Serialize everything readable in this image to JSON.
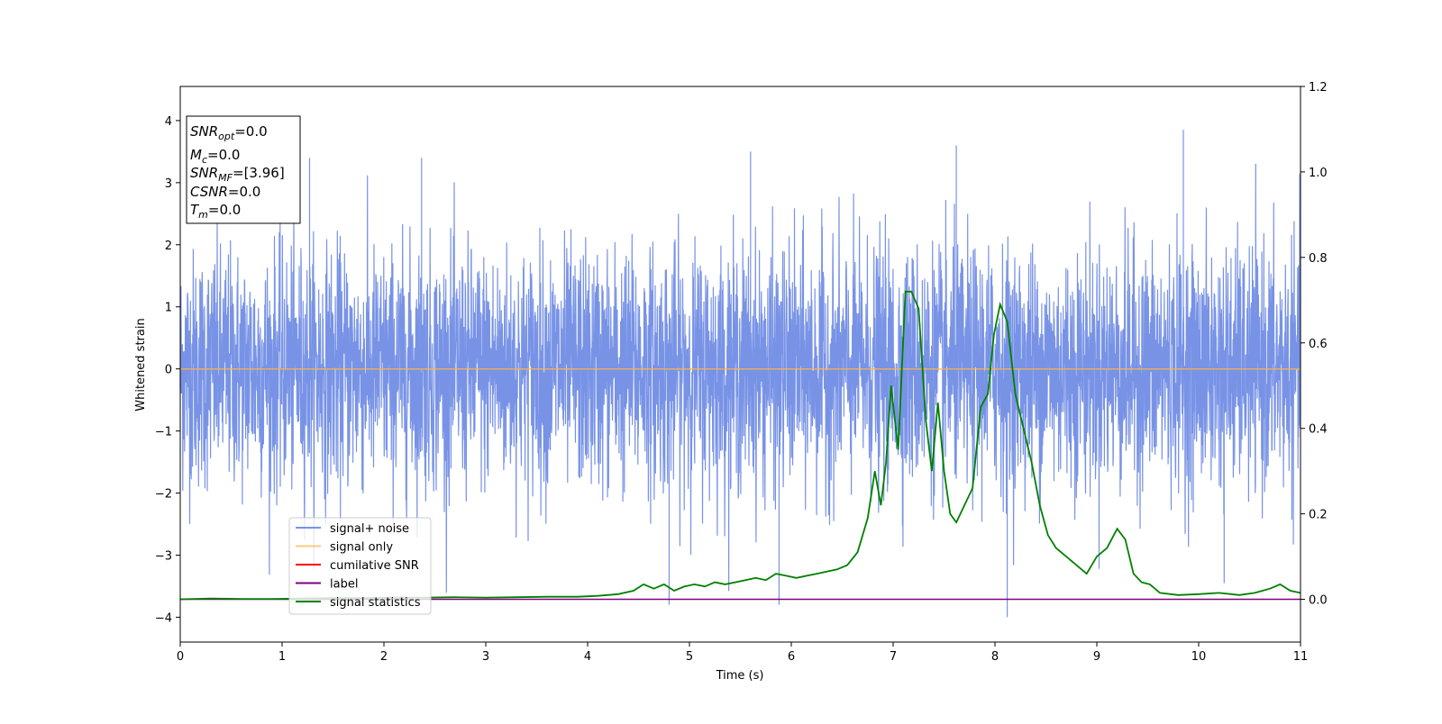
{
  "chart_data": {
    "type": "line",
    "xlabel": "Time (s)",
    "ylabel": "Whitened strain",
    "xlim": [
      0,
      11
    ],
    "ylim_left": [
      -4.4,
      4.55
    ],
    "ylim_right": [
      -0.1,
      1.2
    ],
    "x_ticks": [
      0,
      1,
      2,
      3,
      4,
      5,
      6,
      7,
      8,
      9,
      10,
      11
    ],
    "y_left_ticks": [
      -4,
      -3,
      -2,
      -1,
      0,
      1,
      2,
      3,
      4
    ],
    "y_right_ticks": [
      0.0,
      0.2,
      0.4,
      0.6,
      0.8,
      1.0,
      1.2
    ],
    "y_right_tick_labels": [
      "0.0",
      "0.2",
      "0.4",
      "0.6",
      "0.8",
      "1.0",
      "1.2"
    ],
    "legend_position": "lower-left",
    "grid": false,
    "stats_box": {
      "snr_opt": {
        "base": "SNR",
        "sub": "opt",
        "value": "=0.0"
      },
      "mc": {
        "base": "M",
        "sub": "c",
        "value": "=0.0"
      },
      "snr_mf": {
        "base": "SNR",
        "sub": "MF",
        "value": "=[3.96]"
      },
      "csnr": {
        "base": "CSNR",
        "sub": "",
        "value": "=0.0"
      },
      "tm": {
        "base": "T",
        "sub": "m",
        "value": "=0.0"
      }
    },
    "series": [
      {
        "name": "signal+ noise",
        "color": "#7893e6",
        "axis": "left",
        "description_values": "whitened noise, roughly Gaussian with std ~0.9, range about -4.0 to 3.85",
        "notable_peaks": [
          [
            1.27,
            3.4
          ],
          [
            2.37,
            3.4
          ],
          [
            5.6,
            3.5
          ],
          [
            7.62,
            3.6
          ],
          [
            8.12,
            -4.0
          ],
          [
            9.85,
            3.85
          ],
          [
            10.25,
            -3.45
          ],
          [
            4.8,
            -3.8
          ],
          [
            5.88,
            -3.8
          ]
        ]
      },
      {
        "name": "signal only",
        "color": "#ffb347",
        "axis": "left",
        "x": [
          0,
          11
        ],
        "y": [
          0,
          0
        ]
      },
      {
        "name": "cumilative SNR",
        "color": "#ff0000",
        "axis": "right",
        "x": [],
        "y": []
      },
      {
        "name": "label",
        "color": "#800080",
        "axis": "right",
        "x": [
          0,
          11
        ],
        "y": [
          0,
          0
        ]
      },
      {
        "name": "signal statistics",
        "color": "#008000",
        "axis": "right",
        "x": [
          0,
          0.3,
          0.6,
          0.9,
          1.2,
          1.5,
          1.8,
          2.1,
          2.4,
          2.7,
          3.0,
          3.3,
          3.6,
          3.9,
          4.1,
          4.3,
          4.45,
          4.55,
          4.65,
          4.75,
          4.85,
          4.95,
          5.05,
          5.15,
          5.25,
          5.35,
          5.45,
          5.55,
          5.65,
          5.75,
          5.85,
          5.95,
          6.05,
          6.15,
          6.25,
          6.35,
          6.45,
          6.55,
          6.65,
          6.75,
          6.82,
          6.88,
          6.93,
          6.98,
          7.05,
          7.12,
          7.18,
          7.25,
          7.32,
          7.38,
          7.44,
          7.5,
          7.56,
          7.62,
          7.7,
          7.78,
          7.86,
          7.93,
          7.99,
          8.05,
          8.12,
          8.2,
          8.28,
          8.36,
          8.44,
          8.52,
          8.6,
          8.7,
          8.8,
          8.9,
          9.0,
          9.1,
          9.2,
          9.28,
          9.36,
          9.44,
          9.52,
          9.62,
          9.8,
          10.0,
          10.2,
          10.4,
          10.55,
          10.7,
          10.8,
          10.9,
          11.0
        ],
        "y": [
          0.0,
          0.002,
          0.001,
          0.001,
          0.002,
          0.003,
          0.003,
          0.004,
          0.004,
          0.005,
          0.004,
          0.005,
          0.006,
          0.006,
          0.008,
          0.012,
          0.02,
          0.035,
          0.025,
          0.035,
          0.02,
          0.03,
          0.035,
          0.03,
          0.04,
          0.035,
          0.04,
          0.045,
          0.05,
          0.045,
          0.06,
          0.055,
          0.05,
          0.055,
          0.06,
          0.065,
          0.07,
          0.08,
          0.11,
          0.19,
          0.3,
          0.22,
          0.32,
          0.5,
          0.35,
          0.72,
          0.72,
          0.68,
          0.42,
          0.3,
          0.46,
          0.3,
          0.2,
          0.18,
          0.22,
          0.26,
          0.45,
          0.48,
          0.62,
          0.69,
          0.65,
          0.48,
          0.4,
          0.32,
          0.22,
          0.15,
          0.12,
          0.1,
          0.08,
          0.06,
          0.1,
          0.12,
          0.165,
          0.14,
          0.06,
          0.04,
          0.035,
          0.015,
          0.01,
          0.012,
          0.015,
          0.01,
          0.015,
          0.025,
          0.035,
          0.02,
          0.015
        ]
      }
    ]
  }
}
